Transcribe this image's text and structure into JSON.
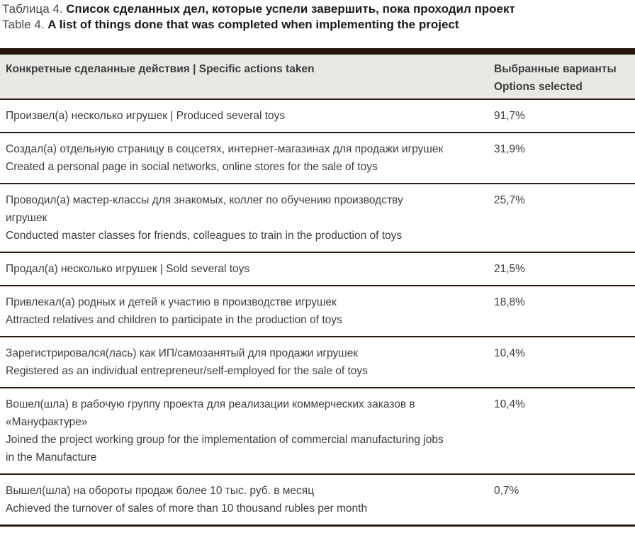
{
  "title": {
    "ru": {
      "prefix": "Таблица 4. ",
      "text": "Список сделанных дел, которые успели завершить, пока проходил проект"
    },
    "en": {
      "prefix": "Table 4. ",
      "text": "A list of things done that was completed when implementing the project"
    }
  },
  "table": {
    "header": {
      "actions": "Конкретные сделанные действия  |  Specific actions taken",
      "options_ru": "Выбранные варианты",
      "options_en": "Options selected"
    },
    "rows": [
      {
        "paragraphs": [
          "Произвел(а) несколько игрушек  |  Produced several toys"
        ],
        "value": "91,7%"
      },
      {
        "paragraphs": [
          "Создал(а) отдельную страницу в соцсетях, интернет-магазинах для продажи игрушек",
          "Created a personal page in social networks, online stores for the sale of toys"
        ],
        "value": "31,9%"
      },
      {
        "paragraphs": [
          "Проводил(а) мастер-классы для знакомых, коллег по обучению производству игрушек",
          "Conducted master classes for friends, colleagues to train in the production of toys"
        ],
        "value": "25,7%"
      },
      {
        "paragraphs": [
          "Продал(а) несколько игрушек  |  Sold several toys"
        ],
        "value": "21,5%"
      },
      {
        "paragraphs": [
          "Привлекал(а) родных и детей к участию в производстве игрушек",
          "Attracted relatives and children to participate in the production of toys"
        ],
        "value": "18,8%"
      },
      {
        "paragraphs": [
          "Зарегистрировался(лась) как ИП/самозанятый для продажи игрушек",
          "Registered as an individual entrepreneur/self-employed for the sale of toys"
        ],
        "value": "10,4%"
      },
      {
        "paragraphs": [
          "Вошел(шла) в рабочую группу проекта для реализации коммерческих заказов в «Мануфактуре»",
          "Joined the project working group for the implementation of commercial manufacturing jobs in the Manufacture"
        ],
        "value": "10,4%"
      },
      {
        "paragraphs": [
          "Вышел(шла) на обороты продаж более 10 тыс. руб. в месяц",
          "Achieved the turnover of sales of more than 10 thousand rubles per month"
        ],
        "value": "0,7%"
      }
    ]
  },
  "colors": {
    "bar": "#261408",
    "rule": "#2a1a10",
    "header_bg": "#e9e8e5",
    "text": "#3d3d3d",
    "text_dark": "#1a1a1a",
    "text_prefix": "#474747"
  }
}
